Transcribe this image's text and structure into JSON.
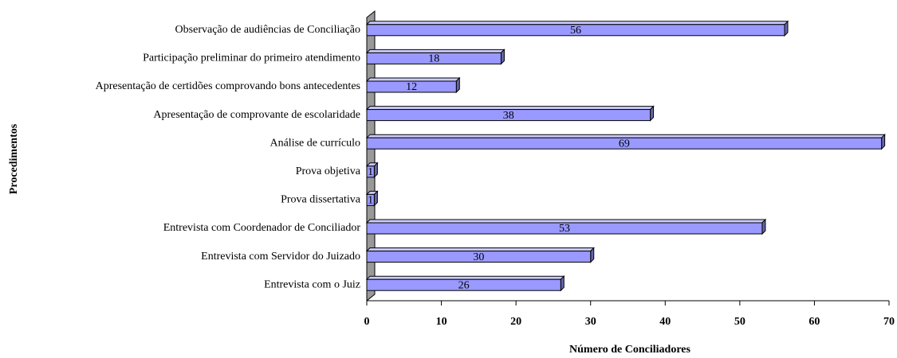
{
  "chart_data": {
    "type": "bar",
    "orientation": "horizontal",
    "x_label": "Número de Conciliadores",
    "y_label": "Procedimentos",
    "categories": [
      "Observação de audiências de Conciliação",
      "Participação preliminar do primeiro atendimento",
      "Apresentação de certidões comprovando bons antecedentes",
      "Apresentação de comprovante de escolaridade",
      "Análise de currículo",
      "Prova objetiva",
      "Prova dissertativa",
      "Entrevista com Coordenador de Conciliador",
      "Entrevista com Servidor do Juizado",
      "Entrevista com o Juiz"
    ],
    "values": [
      56,
      18,
      12,
      38,
      69,
      1,
      1,
      53,
      30,
      26
    ],
    "color": "#9999ff",
    "xlim": [
      0,
      70
    ],
    "xticks": [
      0,
      10,
      20,
      30,
      40,
      50,
      60,
      70
    ]
  }
}
